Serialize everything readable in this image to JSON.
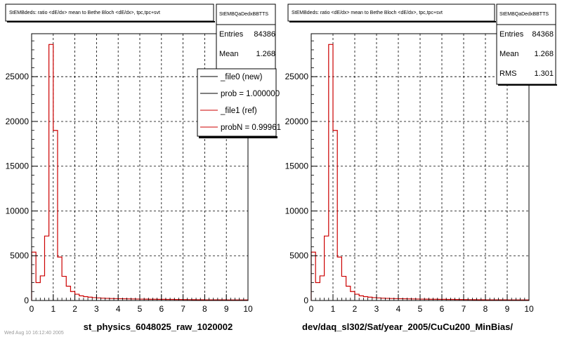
{
  "footer_text": "Wed Aug 10 16:12:40 2005",
  "colors": {
    "new": "#000000",
    "ref": "#cc0000",
    "grid": "#000000",
    "frame": "#000000"
  },
  "legend": {
    "entries": [
      "_file0 (new)",
      "prob = 1.000000",
      "_file1 (ref)",
      "probN = 0.99961"
    ]
  },
  "chart_data": [
    {
      "type": "histogram",
      "title": "StEMBdeds: ratio <dE/dx> mean to Bethe Bloch <dE/dx>, tpc,tpc+svt",
      "xlabel": "st_physics_6048025_raw_1020002",
      "ylabel": "",
      "xlim": [
        0,
        10
      ],
      "ylim": [
        0,
        29800
      ],
      "xticks": [
        "0",
        "1",
        "2",
        "3",
        "4",
        "5",
        "6",
        "7",
        "8",
        "9",
        "10"
      ],
      "yticks": [
        "0",
        "5000",
        "10000",
        "15000",
        "20000",
        "25000"
      ],
      "grid": true,
      "legend_position": "top-right",
      "stats": {
        "title": "StEMBQaDedxBBTTS",
        "entries_label": "Entries",
        "entries": "84386",
        "mean_label": "Mean",
        "mean": "1.268"
      },
      "bin_width": 0.2,
      "series": [
        {
          "name": "_file1 (ref)",
          "color": "#cc0000",
          "values": [
            5400,
            2000,
            2750,
            7200,
            28600,
            19000,
            4850,
            2700,
            1600,
            1000,
            700,
            520,
            430,
            370,
            320,
            290,
            260,
            240,
            220,
            210,
            200,
            190,
            180,
            170,
            160,
            150,
            145,
            140,
            135,
            130,
            125,
            120,
            115,
            110,
            105,
            100,
            95,
            90,
            85,
            80,
            75,
            72,
            70,
            68,
            66,
            64,
            62,
            60,
            58,
            56
          ]
        }
      ]
    },
    {
      "type": "histogram",
      "title": "StEMBdeds: ratio <dE/dx> mean to Bethe Bloch <dE/dx>, tpc,tpc+svt",
      "xlabel": "dev/daq_sl302/Sat/year_2005/CuCu200_MinBias/",
      "ylabel": "",
      "xlim": [
        0,
        10
      ],
      "ylim": [
        0,
        29800
      ],
      "xticks": [
        "0",
        "1",
        "2",
        "3",
        "4",
        "5",
        "6",
        "7",
        "8",
        "9",
        "10"
      ],
      "yticks": [
        "0",
        "5000",
        "10000",
        "15000",
        "20000",
        "25000"
      ],
      "grid": true,
      "stats": {
        "title": "StEMBQaDedxBBTTS",
        "entries_label": "Entries",
        "entries": "84368",
        "mean_label": "Mean",
        "mean": "1.268",
        "rms_label": "RMS",
        "rms": "1.301"
      },
      "bin_width": 0.2,
      "series": [
        {
          "name": "_file0 (new)",
          "color": "#cc0000",
          "values": [
            5400,
            2000,
            2750,
            7200,
            28600,
            19000,
            4850,
            2700,
            1600,
            1000,
            700,
            520,
            430,
            370,
            320,
            290,
            260,
            240,
            220,
            210,
            200,
            190,
            180,
            170,
            160,
            150,
            145,
            140,
            135,
            130,
            125,
            120,
            115,
            110,
            105,
            100,
            95,
            90,
            85,
            80,
            75,
            72,
            70,
            68,
            66,
            64,
            62,
            60,
            58,
            56
          ]
        }
      ]
    }
  ]
}
